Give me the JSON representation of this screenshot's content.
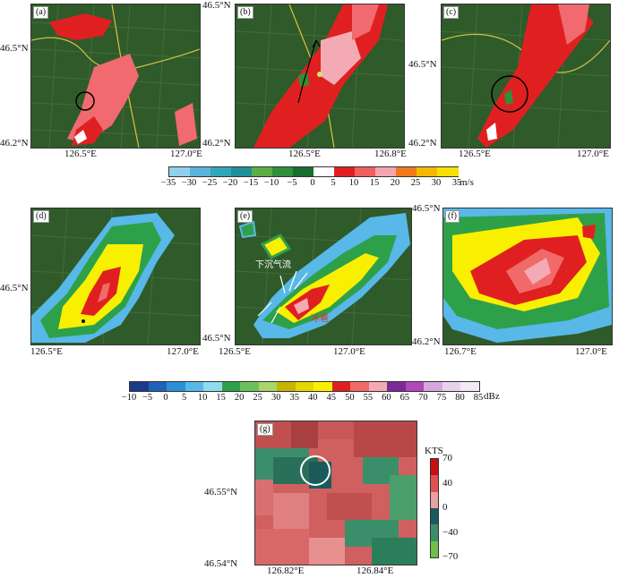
{
  "panels": {
    "a": {
      "label": "(a)",
      "y_ticks": [
        "46.5°N",
        "46.2°N"
      ],
      "x_ticks": [
        "126.5°E",
        "127.0°E"
      ]
    },
    "b": {
      "label": "(b)",
      "y_ticks": [
        "46.5°N",
        "46.2°N"
      ],
      "x_ticks": [
        "126.5°E",
        "126.8°E"
      ]
    },
    "c": {
      "label": "(c)",
      "y_ticks": [
        "46.5°N",
        "46.2°N"
      ],
      "x_ticks": [
        "126.5°E",
        "127.0°E"
      ]
    },
    "d": {
      "label": "(d)",
      "y_ticks": [
        "46.5°N"
      ],
      "x_ticks": [
        "126.5°E",
        "127.0°E"
      ]
    },
    "e": {
      "label": "(e)",
      "y_ticks": [
        "46.5°N"
      ],
      "x_ticks": [
        "126.5°E",
        "127.0°E"
      ],
      "annotation_downdraft": "下沉气流",
      "annotation_red": "冰雹"
    },
    "f": {
      "label": "(f)",
      "y_ticks": [
        "46.5°N",
        "46.2°N"
      ],
      "x_ticks": [
        "126.7°E",
        "127.0°E"
      ]
    },
    "g": {
      "label": "(g)",
      "y_ticks": [
        "46.55°N",
        "46.54°N"
      ],
      "x_ticks": [
        "126.82°E",
        "126.84°E"
      ]
    }
  },
  "colorbar_velocity": {
    "labels": [
      "−35",
      "−30",
      "−25",
      "−20",
      "−15",
      "−10",
      "−5",
      "0",
      "5",
      "10",
      "15",
      "20",
      "25",
      "30",
      "35"
    ],
    "unit": "m/s",
    "colors": [
      "#8fd1ec",
      "#5ab4de",
      "#2fa7b8",
      "#1f8f9a",
      "#5aae45",
      "#2f8f3a",
      "#1a6d2d",
      "#ffffff",
      "#e02020",
      "#f06060",
      "#f4a6b0",
      "#f07a1a",
      "#f5b800",
      "#f5e000"
    ]
  },
  "colorbar_reflectivity": {
    "labels": [
      "−10",
      "−5",
      "0",
      "5",
      "10",
      "15",
      "20",
      "25",
      "30",
      "35",
      "40",
      "45",
      "50",
      "55",
      "60",
      "65",
      "70",
      "75",
      "80",
      "85"
    ],
    "unit": "dBz",
    "colors": [
      "#1a3a8a",
      "#1f63b8",
      "#2a8fd6",
      "#58b8e8",
      "#8fdcef",
      "#2fa04a",
      "#6bc05a",
      "#a8d66a",
      "#c8b400",
      "#e6d600",
      "#f8f000",
      "#e02020",
      "#f06a6a",
      "#f4aab4",
      "#7a2a9a",
      "#b048b8",
      "#d7a6e0",
      "#e6d2ee",
      "#f2e8f6"
    ]
  },
  "colorbar_g": {
    "title": "KTS",
    "labels": [
      "70",
      "40",
      "0",
      "−40",
      "−70"
    ],
    "colors": [
      "#c81010",
      "#e05050",
      "#e8a0a0",
      "#1a5a5a",
      "#3a8f6a",
      "#6fbf4a"
    ]
  }
}
